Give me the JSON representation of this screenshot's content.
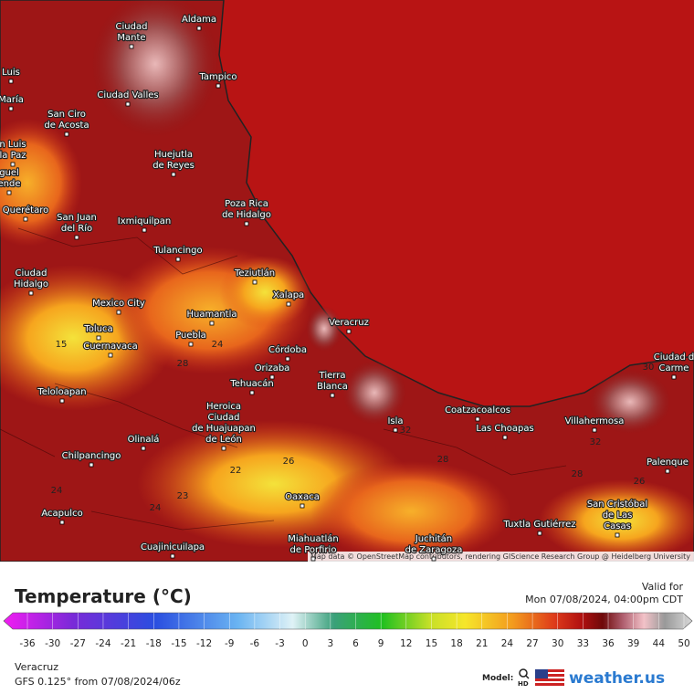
{
  "map": {
    "cities": [
      [
        "Aldama"
      ],
      [
        "Ciudad",
        "Mante"
      ],
      [
        "Tampico"
      ],
      [
        "Luis"
      ],
      [
        "María"
      ],
      [
        "Ciudad Valles"
      ],
      [
        "San Ciro",
        "de Acosta"
      ],
      [
        "n Luis",
        "la Paz"
      ],
      [
        "guel",
        "ende"
      ],
      [
        "Huejutla",
        "de Reyes"
      ],
      [
        "Poza Rica",
        "de Hidalgo"
      ],
      [
        "Querétaro"
      ],
      [
        "San Juan",
        "del Río"
      ],
      [
        "Ixmiquilpan"
      ],
      [
        "Tulancingo"
      ],
      [
        "Teziutlán"
      ],
      [
        "Ciudad",
        "Hidalgo"
      ],
      [
        "Xalapa"
      ],
      [
        "Mexico City"
      ],
      [
        "Huamantla"
      ],
      [
        "Veracruz"
      ],
      [
        "Toluca"
      ],
      [
        "Puebla"
      ],
      [
        "Cuernavaca"
      ],
      [
        "Córdoba"
      ],
      [
        "Orizaba"
      ],
      [
        "Tierra",
        "Blanca"
      ],
      [
        "Tehuacán"
      ],
      [
        "Teloloapan"
      ],
      [
        "Coatzacoalcos"
      ],
      [
        "Heroica",
        "Ciudad",
        "de Huajuapan",
        "de León"
      ],
      [
        "Villahermosa"
      ],
      [
        "Isla"
      ],
      [
        "Las Choapas"
      ],
      [
        "Olinalá"
      ],
      [
        "Chilpancingo"
      ],
      [
        "Palenque"
      ],
      [
        "Oaxaca"
      ],
      [
        "San Cristóbal",
        "de Las",
        "Casas"
      ],
      [
        "Acapulco"
      ],
      [
        "Tuxtla Gutiérrez"
      ],
      [
        "Juchitán",
        "de Zaragoza"
      ],
      [
        "Cuajinicuilapa"
      ],
      [
        "Miahuatlán",
        "de Porfirio"
      ],
      [
        "Ciudad d",
        "Carme"
      ]
    ],
    "contour_labels": [
      15,
      24,
      28,
      22,
      26,
      24,
      24,
      23,
      28,
      26,
      28,
      32,
      30,
      32
    ],
    "attribution": "Map data © OpenStreetMap contributors, rendering GIScience Research Group @ Heidelberg University"
  },
  "legend": {
    "title": "Temperature (°C)",
    "ticks": [
      -36,
      -30,
      -27,
      -24,
      -21,
      -18,
      -15,
      -12,
      -9,
      -6,
      -3,
      0,
      3,
      6,
      9,
      12,
      15,
      18,
      21,
      24,
      27,
      30,
      33,
      36,
      39,
      44,
      50
    ]
  },
  "valid": {
    "label": "Valid for",
    "time": "Mon 07/08/2024, 04:00pm CDT"
  },
  "footer": {
    "location": "Veracruz",
    "model_run": "GFS 0.125° from  07/08/2024/06z",
    "model_label": "Model:",
    "hd": "HD",
    "brand": "weather.us"
  }
}
